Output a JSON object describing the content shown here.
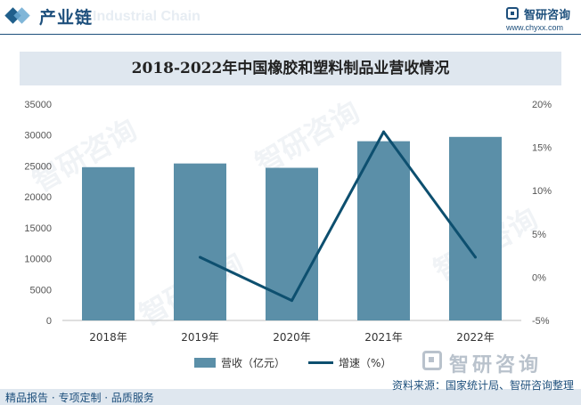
{
  "header": {
    "title": "产业链",
    "watermark_text": "Industrial Chain",
    "logo_name": "智研咨询",
    "logo_url": "www.chyxx.com"
  },
  "chart_data": {
    "type": "bar+line",
    "title": "2018-2022年中国橡胶和塑料制品业营收情况",
    "categories": [
      "2018年",
      "2019年",
      "2020年",
      "2021年",
      "2022年"
    ],
    "series": [
      {
        "name": "营收（亿元）",
        "type": "bar",
        "axis": "left",
        "color": "#5b8fa8",
        "values": [
          24800,
          25400,
          24700,
          29000,
          29700
        ]
      },
      {
        "name": "增速（%）",
        "type": "line",
        "axis": "right",
        "color": "#0d4f6f",
        "values": [
          null,
          2.3,
          -2.7,
          16.8,
          2.3
        ]
      }
    ],
    "y_left": {
      "min": 0,
      "max": 35000,
      "ticks": [
        "0",
        "5000",
        "10000",
        "15000",
        "20000",
        "25000",
        "30000",
        "35000"
      ]
    },
    "y_right": {
      "min": -5,
      "max": 20,
      "ticks": [
        "-5%",
        "0%",
        "5%",
        "10%",
        "15%",
        "20%"
      ]
    },
    "legend_position": "bottom",
    "grid": false
  },
  "legend": {
    "bar_label": "营收（亿元）",
    "line_label": "增速（%）"
  },
  "bottom_watermark": "智研咨询",
  "footer": {
    "source": "资料来源：国家统计局、智研咨询整理",
    "tagline": "精品报告 · 专项定制 · 品质服务"
  }
}
